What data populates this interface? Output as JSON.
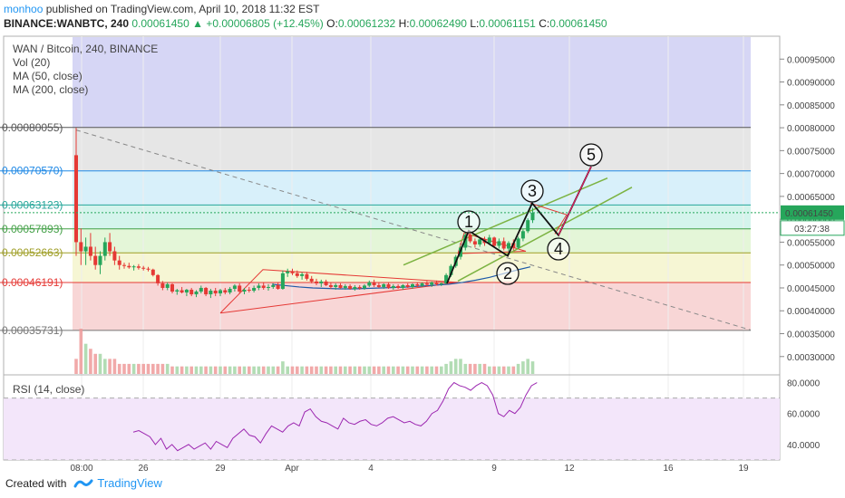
{
  "header": {
    "author": "monhoo",
    "published": "published on TradingView.com, April 10, 2018 11:32 EST",
    "symbol": "BINANCE:WANBTC, 240",
    "last": "0.00061450",
    "change": "+0.00006805 (+12.45%)",
    "o_label": "O:",
    "o": "0.00061232",
    "h_label": "H:",
    "h": "0.00062490",
    "l_label": "L:",
    "l": "0.00061151",
    "c_label": "C:",
    "c": "0.00061450"
  },
  "legend": {
    "title": "WAN / Bitcoin, 240, BINANCE",
    "vol": "Vol (20)",
    "ma50": "MA (50, close)",
    "ma200": "MA (200, close)",
    "rsi": "RSI (14, close)"
  },
  "footer": {
    "created": "Created with",
    "brand": "TradingView"
  },
  "colors": {
    "up": "#26a65b",
    "down": "#e53935",
    "fib_top": "#d6d6f5",
    "fib_grey": "#e6e6e6",
    "fib_blue": "#d8f0fa",
    "fib_cyan": "#d4f4ec",
    "fib_green": "#e4f6d8",
    "fib_yellow": "#f6f6d4",
    "fib_red": "#f8d6d6",
    "rsi_bg": "#f3e6fa",
    "rsi_line": "#9c27b0"
  },
  "chart_data": {
    "type": "candlestick",
    "price_axis": {
      "ylim": [
        0.00026,
        0.001
      ],
      "ticks": [
        "0.00095000",
        "0.00090000",
        "0.00085000",
        "0.00080000",
        "0.00075000",
        "0.00070000",
        "0.00065000",
        "0.00060000",
        "0.00055000",
        "0.00050000",
        "0.00045000",
        "0.00040000",
        "0.00035000",
        "0.00030000"
      ],
      "last_price": "0.00061450",
      "countdown": "03:27:38"
    },
    "time_axis": {
      "labels": [
        "08:00",
        "26",
        "29",
        "Apr",
        "4",
        "9",
        "12",
        "16",
        "19"
      ]
    },
    "fib_levels": [
      {
        "label": "0.00080055)",
        "value": 0.00080055,
        "color": "#555555"
      },
      {
        "label": "0.00070570)",
        "value": 0.0007057,
        "color": "#1e88e5"
      },
      {
        "label": "0.00063123)",
        "value": 0.00063123,
        "color": "#26a69a"
      },
      {
        "label": "0.00057893)",
        "value": 0.00057893,
        "color": "#43a047"
      },
      {
        "label": "0.00052663)",
        "value": 0.00052663,
        "color": "#9e9d24"
      },
      {
        "label": "0.00046191)",
        "value": 0.00046191,
        "color": "#e53935"
      },
      {
        "label": "0.00035731)",
        "value": 0.00035731,
        "color": "#757575"
      }
    ],
    "candles": [
      [
        0,
        0.00074,
        0.0008,
        0.00052,
        0.00055
      ],
      [
        1,
        0.00055,
        0.00058,
        0.0005,
        0.00053
      ],
      [
        2,
        0.00053,
        0.00056,
        0.0005,
        0.00054
      ],
      [
        3,
        0.00054,
        0.00057,
        0.00051,
        0.00052
      ],
      [
        4,
        0.00052,
        0.00054,
        0.00049,
        0.0005
      ],
      [
        5,
        0.0005,
        0.00053,
        0.00048,
        0.00052
      ],
      [
        6,
        0.00052,
        0.00056,
        0.00051,
        0.00055
      ],
      [
        7,
        0.00055,
        0.00057,
        0.00052,
        0.00053
      ],
      [
        8,
        0.00053,
        0.00054,
        0.0005,
        0.00051
      ],
      [
        9,
        0.00051,
        0.00052,
        0.00049,
        0.0005
      ],
      [
        10,
        0.0005,
        0.000505,
        0.000492,
        0.000498
      ],
      [
        11,
        0.000498,
        0.000505,
        0.000492,
        0.000495
      ],
      [
        12,
        0.000495,
        0.0005,
        0.000488,
        0.000497
      ],
      [
        13,
        0.000497,
        0.000502,
        0.00049,
        0.000494
      ],
      [
        14,
        0.000494,
        0.000498,
        0.000488,
        0.000492
      ],
      [
        15,
        0.000492,
        0.000496,
        0.000486,
        0.00049
      ],
      [
        16,
        0.00049,
        0.000492,
        0.000475,
        0.000478
      ],
      [
        17,
        0.000478,
        0.00048,
        0.000455,
        0.00046
      ],
      [
        18,
        0.00046,
        0.000465,
        0.000445,
        0.00045
      ],
      [
        19,
        0.00045,
        0.000462,
        0.000445,
        0.000458
      ],
      [
        20,
        0.000458,
        0.00046,
        0.000438,
        0.000442
      ],
      [
        21,
        0.000442,
        0.000448,
        0.000435,
        0.000445
      ],
      [
        22,
        0.000445,
        0.000452,
        0.000438,
        0.00044
      ],
      [
        23,
        0.00044,
        0.000448,
        0.000432,
        0.000446
      ],
      [
        24,
        0.000446,
        0.00045,
        0.000432,
        0.000436
      ],
      [
        25,
        0.000436,
        0.000445,
        0.00043,
        0.000442
      ],
      [
        26,
        0.000442,
        0.000455,
        0.000438,
        0.00045
      ],
      [
        27,
        0.00045,
        0.000452,
        0.000432,
        0.000436
      ],
      [
        28,
        0.000436,
        0.000448,
        0.000428,
        0.000444
      ],
      [
        29,
        0.000444,
        0.00045,
        0.000432,
        0.000438
      ],
      [
        30,
        0.000438,
        0.000448,
        0.000432,
        0.000445
      ],
      [
        31,
        0.000445,
        0.00045,
        0.000436,
        0.00044
      ],
      [
        32,
        0.00044,
        0.000452,
        0.000436,
        0.000448
      ],
      [
        33,
        0.000448,
        0.000458,
        0.000442,
        0.000455
      ],
      [
        34,
        0.000455,
        0.00046,
        0.000438,
        0.000442
      ],
      [
        35,
        0.000442,
        0.00045,
        0.000436,
        0.000446
      ],
      [
        36,
        0.000446,
        0.000452,
        0.00044,
        0.000444
      ],
      [
        37,
        0.000444,
        0.000455,
        0.00044,
        0.00045
      ],
      [
        38,
        0.00045,
        0.00046,
        0.000445,
        0.000455
      ],
      [
        39,
        0.000455,
        0.000462,
        0.000446,
        0.00045
      ],
      [
        40,
        0.00045,
        0.000458,
        0.000444,
        0.000452
      ],
      [
        41,
        0.000452,
        0.00046,
        0.000448,
        0.000456
      ],
      [
        42,
        0.000456,
        0.000462,
        0.000446,
        0.000448
      ],
      [
        43,
        0.000448,
        0.000488,
        0.000446,
        0.000482
      ],
      [
        44,
        0.000482,
        0.000492,
        0.000474,
        0.000486
      ],
      [
        45,
        0.000486,
        0.000492,
        0.000478,
        0.000482
      ],
      [
        46,
        0.000482,
        0.000488,
        0.000472,
        0.000476
      ],
      [
        47,
        0.000476,
        0.000484,
        0.000468,
        0.00048
      ],
      [
        48,
        0.00048,
        0.000485,
        0.000466,
        0.00047
      ],
      [
        49,
        0.00047,
        0.000476,
        0.00046,
        0.000464
      ],
      [
        50,
        0.000464,
        0.00047,
        0.000456,
        0.00046
      ],
      [
        51,
        0.00046,
        0.000468,
        0.000452,
        0.000464
      ],
      [
        52,
        0.000464,
        0.000468,
        0.000454,
        0.000456
      ],
      [
        53,
        0.000456,
        0.000462,
        0.000448,
        0.000452
      ],
      [
        54,
        0.000452,
        0.00046,
        0.000446,
        0.000456
      ],
      [
        55,
        0.000456,
        0.00046,
        0.000448,
        0.00045
      ],
      [
        56,
        0.00045,
        0.000458,
        0.000446,
        0.000454
      ],
      [
        57,
        0.000454,
        0.000458,
        0.000446,
        0.000448
      ],
      [
        58,
        0.000448,
        0.000456,
        0.000444,
        0.000452
      ],
      [
        59,
        0.000452,
        0.000456,
        0.000446,
        0.000449
      ],
      [
        60,
        0.000449,
        0.000458,
        0.000446,
        0.000455
      ],
      [
        61,
        0.000455,
        0.000466,
        0.000452,
        0.000462
      ],
      [
        62,
        0.000462,
        0.000468,
        0.000452,
        0.000456
      ],
      [
        63,
        0.000456,
        0.000462,
        0.00045,
        0.000452
      ],
      [
        64,
        0.000452,
        0.00046,
        0.000448,
        0.000458
      ],
      [
        65,
        0.000458,
        0.000462,
        0.000448,
        0.00045
      ],
      [
        66,
        0.00045,
        0.000458,
        0.000446,
        0.000454
      ],
      [
        67,
        0.000454,
        0.000458,
        0.000448,
        0.00045
      ],
      [
        68,
        0.00045,
        0.000458,
        0.000446,
        0.000456
      ],
      [
        69,
        0.000456,
        0.00046,
        0.00045,
        0.000452
      ],
      [
        70,
        0.000452,
        0.00046,
        0.000448,
        0.000458
      ],
      [
        71,
        0.000458,
        0.000462,
        0.000452,
        0.000455
      ],
      [
        72,
        0.000455,
        0.000462,
        0.000452,
        0.00046
      ],
      [
        73,
        0.00046,
        0.000465,
        0.000454,
        0.000457
      ],
      [
        74,
        0.000457,
        0.000464,
        0.000452,
        0.000462
      ],
      [
        75,
        0.000462,
        0.000466,
        0.000455,
        0.000458
      ],
      [
        76,
        0.000458,
        0.000462,
        0.000454,
        0.00046
      ],
      [
        77,
        0.00046,
        0.000482,
        0.000458,
        0.000478
      ],
      [
        78,
        0.000478,
        0.000502,
        0.000474,
        0.000498
      ],
      [
        79,
        0.000498,
        0.000522,
        0.000494,
        0.000518
      ],
      [
        80,
        0.000518,
        0.000542,
        0.000512,
        0.000538
      ],
      [
        81,
        0.000538,
        0.000572,
        0.000532,
        0.000566
      ],
      [
        82,
        0.000566,
        0.00057,
        0.000548,
        0.000552
      ],
      [
        83,
        0.000552,
        0.000558,
        0.000538,
        0.000545
      ],
      [
        84,
        0.000545,
        0.00056,
        0.00054,
        0.000556
      ],
      [
        85,
        0.000556,
        0.000562,
        0.000542,
        0.000548
      ],
      [
        86,
        0.000548,
        0.000566,
        0.000544,
        0.00056
      ],
      [
        87,
        0.00056,
        0.000562,
        0.000538,
        0.000542
      ],
      [
        88,
        0.000542,
        0.000558,
        0.000536,
        0.000552
      ],
      [
        89,
        0.000552,
        0.00056,
        0.000532,
        0.000536
      ],
      [
        90,
        0.000536,
        0.000552,
        0.00053,
        0.000548
      ],
      [
        91,
        0.000548,
        0.000556,
        0.000532,
        0.000538
      ],
      [
        92,
        0.000538,
        0.000562,
        0.000535,
        0.000558
      ],
      [
        93,
        0.000558,
        0.000578,
        0.000552,
        0.000574
      ],
      [
        94,
        0.000574,
        0.000602,
        0.00057,
        0.000598
      ],
      [
        95,
        0.000598,
        0.000625,
        0.000592,
        0.000614
      ]
    ],
    "volume": [
      3,
      9,
      6,
      5,
      4,
      4,
      3,
      3,
      3,
      2,
      2,
      2,
      2,
      2,
      2,
      2,
      2,
      2,
      2,
      2,
      1.5,
      1.5,
      1.5,
      1.5,
      1.5,
      1.5,
      1.5,
      1.5,
      1.5,
      1.5,
      1.5,
      1.5,
      1.5,
      1.5,
      1.5,
      1.5,
      1.5,
      1.5,
      1.5,
      1.5,
      1.5,
      1.5,
      1.5,
      2.5,
      1.5,
      1.5,
      1.5,
      1.5,
      1.5,
      1.5,
      1.5,
      1.5,
      1.5,
      1.5,
      1.5,
      1.5,
      1.5,
      1.5,
      1.5,
      1.5,
      1.5,
      1.5,
      1.5,
      1.5,
      1.5,
      1.5,
      1.5,
      1.5,
      1.5,
      1.5,
      1.5,
      1.5,
      1.5,
      1.5,
      1.5,
      1.5,
      1.5,
      2,
      2.5,
      3,
      3,
      2,
      2,
      2,
      2,
      2,
      1.5,
      1.5,
      1.5,
      1.5,
      1.5,
      1.5,
      2,
      2.5,
      3,
      2.5
    ],
    "rsi": [
      48,
      49,
      47,
      45,
      40,
      44,
      37,
      40,
      36,
      38,
      40,
      37,
      39,
      41,
      37,
      42,
      40,
      38,
      44,
      47,
      50,
      46,
      45,
      41,
      47,
      52,
      50,
      48,
      52,
      54,
      52,
      61,
      63,
      58,
      55,
      54,
      52,
      50,
      57,
      54,
      53,
      55,
      56,
      53,
      52,
      54,
      57,
      58,
      56,
      54,
      55,
      53,
      52,
      55,
      60,
      62,
      68,
      76,
      80,
      78,
      77,
      75,
      78,
      80,
      78,
      72,
      60,
      58,
      62,
      60,
      64,
      72,
      78,
      80
    ],
    "rsi_axis": {
      "ticks": [
        "80.0000",
        "60.0000",
        "40.0000"
      ],
      "ylim": [
        30,
        85
      ]
    },
    "ma50": [
      0.000458,
      0.000455,
      0.000452,
      0.00045,
      0.000449,
      0.000448,
      0.000448,
      0.000449,
      0.00045,
      0.000451,
      0.000452,
      0.000454,
      0.000456,
      0.000458,
      0.000462,
      0.000467,
      0.000473,
      0.000481,
      0.000489,
      0.000496
    ],
    "waves": [
      {
        "label": "1",
        "price": 0.000575
      },
      {
        "label": "2",
        "price": 0.00052
      },
      {
        "label": "3",
        "price": 0.000635
      },
      {
        "label": "4",
        "price": 0.000565
      },
      {
        "label": "5",
        "price": 0.000715
      }
    ]
  }
}
